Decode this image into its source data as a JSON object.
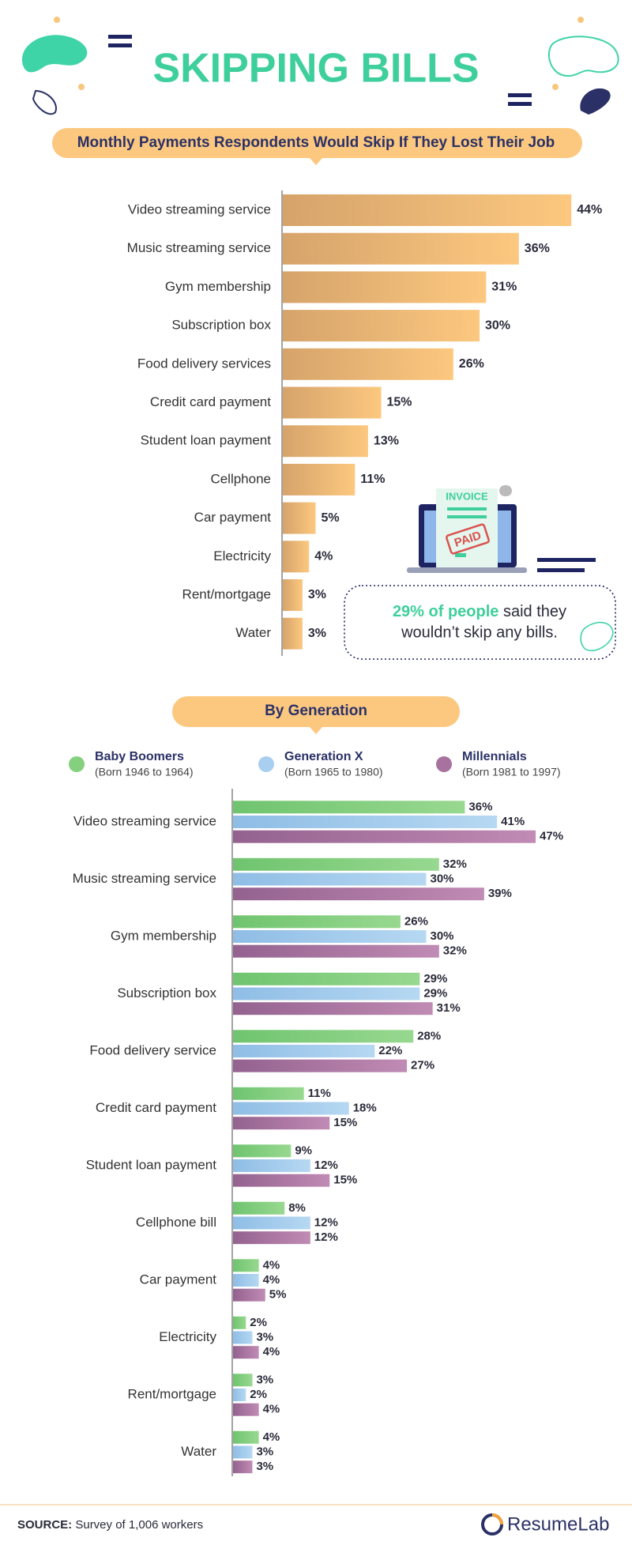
{
  "header": {
    "title": "SKIPPING BILLS"
  },
  "chart_data": [
    {
      "type": "hbar",
      "title": "Monthly Payments Respondents Would Skip If They Lost Their Job",
      "categories": [
        "Video streaming service",
        "Music streaming service",
        "Gym membership",
        "Subscription box",
        "Food delivery services",
        "Credit card payment",
        "Student loan payment",
        "Cellphone",
        "Car payment",
        "Electricity",
        "Rent/mortgage",
        "Water"
      ],
      "values": [
        44,
        36,
        31,
        30,
        26,
        15,
        13,
        11,
        5,
        4,
        3,
        3
      ],
      "value_labels": [
        "44%",
        "36%",
        "31%",
        "30%",
        "26%",
        "15%",
        "13%",
        "11%",
        "5%",
        "4%",
        "3%",
        "3%"
      ],
      "color": "#f2b978"
    },
    {
      "type": "grouped-hbar",
      "title": "By Generation",
      "categories": [
        "Video streaming service",
        "Music streaming service",
        "Gym membership",
        "Subscription box",
        "Food delivery service",
        "Credit card payment",
        "Student loan payment",
        "Cellphone bill",
        "Car payment",
        "Electricity",
        "Rent/mortgage",
        "Water"
      ],
      "series": [
        {
          "name": "Baby Boomers",
          "subtitle": "(Born 1946 to 1964)",
          "color": "#84d07e",
          "values": [
            36,
            32,
            26,
            29,
            28,
            11,
            9,
            8,
            4,
            2,
            3,
            4
          ],
          "value_labels": [
            "36%",
            "32%",
            "26%",
            "29%",
            "28%",
            "11%",
            "9%",
            "8%",
            "4%",
            "2%",
            "3%",
            "4%"
          ]
        },
        {
          "name": "Generation X",
          "subtitle": "(Born 1965 to 1980)",
          "color": "#a8cff0",
          "values": [
            41,
            30,
            30,
            29,
            22,
            18,
            12,
            12,
            4,
            3,
            2,
            3
          ],
          "value_labels": [
            "41%",
            "30%",
            "30%",
            "29%",
            "22%",
            "18%",
            "12%",
            "12%",
            "4%",
            "3%",
            "2%",
            "3%"
          ]
        },
        {
          "name": "Millennials",
          "subtitle": "(Born 1981 to 1997)",
          "color": "#a8729e",
          "values": [
            47,
            39,
            32,
            31,
            27,
            15,
            15,
            12,
            5,
            4,
            4,
            3
          ],
          "value_labels": [
            "47%",
            "39%",
            "32%",
            "31%",
            "27%",
            "15%",
            "15%",
            "12%",
            "5%",
            "4%",
            "4%",
            "3%"
          ]
        }
      ]
    }
  ],
  "illustration": {
    "invoice": "INVOICE",
    "stamp": "PAID"
  },
  "callout": {
    "highlight": "29% of people",
    "rest": "said they",
    "line2": "wouldn’t skip any bills."
  },
  "footer": {
    "source_label": "SOURCE:",
    "source": "Survey of 1,006 workers",
    "brand": "ResumeLab"
  }
}
